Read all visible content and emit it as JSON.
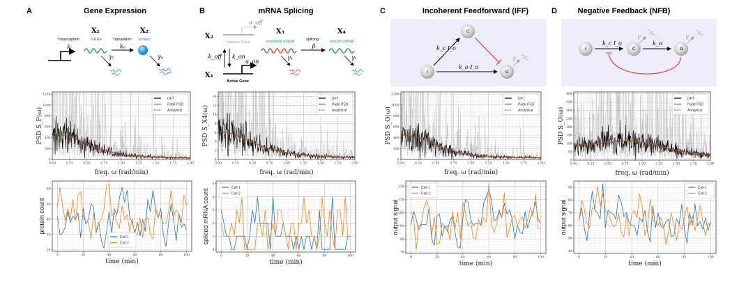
{
  "panels": [
    {
      "label": "A",
      "title": "Gene Expression"
    },
    {
      "label": "B",
      "title": "mRNA Splicing"
    },
    {
      "label": "C",
      "title": "Incoherent Feedforward (IFF)"
    },
    {
      "label": "D",
      "title": "Negative Feedback (NFB)"
    }
  ],
  "diagram_a": {
    "x1": "X₁",
    "x2": "X₂",
    "transcription": "Transcription",
    "kr": "kᵣ",
    "mrna": "mRNA",
    "translation": "Translation",
    "kp": "kₚ",
    "protein": "protein",
    "gr": "γᵣ",
    "gp": "γₚ"
  },
  "diagram_b": {
    "x2": "X₂",
    "x1": "X₁",
    "x3": "X₃",
    "x4": "X₄",
    "inactive": "Inactive Gene",
    "active": "Active Gene",
    "aoff": "α_off",
    "aon": "α_on",
    "koff": "k_off",
    "kon": "k_on",
    "unspliced": "unspliced mRNA",
    "splicing": "splicing",
    "beta": "β",
    "spliced": "spliced mRNA",
    "gu": "γᵤ",
    "gr": "γᵣ"
  },
  "diagram_c": {
    "c": "C",
    "i": "I",
    "o": "O",
    "kc": "k_c I_o",
    "ko": "k_o I_o",
    "g": "γ"
  },
  "diagram_d": {
    "c": "C",
    "i": "I",
    "o": "O",
    "kc": "k_c I_o",
    "ko": "k_o",
    "g": "γ"
  },
  "colors": {
    "cell1": "#1f77b4",
    "cell2": "#ff7f0e",
    "dft": "#000000",
    "dft_raw": "#bdbdbd",
    "pade": "#ff2020",
    "analytical": "#2ca02c",
    "diagram_bg": "#ececfa",
    "inhibit": "#ff2a1a",
    "mrna": "#1aa34a",
    "protein": "#2a6cff"
  },
  "chart_data": [
    {
      "type": "line",
      "panel": "A",
      "ylabel": "PSD S_P(ω)",
      "xlabel": "freq. ω (rad/min)",
      "xlim": [
        0,
        2
      ],
      "ylim": [
        0,
        1240
      ],
      "xticks": [
        "0.00",
        "0.25",
        "0.50",
        "0.75",
        "1.00",
        "1.25",
        "1.50",
        "1.75",
        "2.00"
      ],
      "yticks": [
        "0",
        "200",
        "400",
        "600",
        "800",
        "1000",
        "1200"
      ],
      "legend": [
        "DFT",
        "Padé PSD",
        "Analytical"
      ],
      "legend_position": "top-right",
      "grid": true,
      "x": [
        0,
        0.125,
        0.25,
        0.375,
        0.5,
        0.625,
        0.75,
        0.875,
        1,
        1.125,
        1.25,
        1.375,
        1.5,
        1.625,
        1.75,
        1.875,
        2
      ],
      "analytical": [
        480,
        460,
        420,
        360,
        290,
        225,
        170,
        130,
        95,
        75,
        60,
        50,
        42,
        38,
        33,
        30,
        28
      ]
    },
    {
      "type": "line",
      "panel": "B",
      "ylabel": "PSD S_X4(ω)",
      "xlabel": "freq. ω (rad/min)",
      "xlim": [
        0,
        2
      ],
      "ylim": [
        0,
        15
      ],
      "xticks": [
        "0.00",
        "0.25",
        "0.50",
        "0.75",
        "1.00",
        "1.25",
        "1.50",
        "1.75",
        "2.00"
      ],
      "yticks": [
        "0",
        "2",
        "4",
        "6",
        "8",
        "10",
        "12",
        "14"
      ],
      "legend": [
        "DFT",
        "Padé PSD",
        "Analytical"
      ],
      "legend_position": "top-right",
      "grid": true,
      "x": [
        0,
        0.125,
        0.25,
        0.375,
        0.5,
        0.625,
        0.75,
        0.875,
        1,
        1.125,
        1.25,
        1.375,
        1.5,
        1.625,
        1.75,
        1.875,
        2
      ],
      "analytical": [
        6.2,
        6.0,
        5.5,
        4.7,
        3.8,
        3.0,
        2.4,
        1.9,
        1.5,
        1.2,
        1.0,
        0.85,
        0.7,
        0.6,
        0.55,
        0.5,
        0.45
      ]
    },
    {
      "type": "line",
      "panel": "C",
      "ylabel": "PSD S_O(ω)",
      "xlabel": "freq. ω (rad/min)",
      "xlim": [
        0,
        2
      ],
      "ylim": [
        0,
        1240
      ],
      "xticks": [
        "0.00",
        "0.25",
        "0.50",
        "0.75",
        "1.00",
        "1.25",
        "1.50",
        "1.75",
        "2.00"
      ],
      "yticks": [
        "0",
        "200",
        "400",
        "600",
        "800",
        "1000",
        "1200"
      ],
      "legend": [
        "DFT",
        "Padé PSD",
        "Analytical"
      ],
      "legend_position": "top-right",
      "grid": true,
      "x": [
        0,
        0.125,
        0.25,
        0.375,
        0.5,
        0.625,
        0.75,
        0.875,
        1,
        1.125,
        1.25,
        1.375,
        1.5,
        1.625,
        1.75,
        1.875,
        2
      ],
      "analytical": [
        450,
        440,
        400,
        340,
        270,
        205,
        155,
        115,
        85,
        65,
        55,
        48,
        42,
        38,
        35,
        32,
        30
      ]
    },
    {
      "type": "line",
      "panel": "D",
      "ylabel": "PSD S_O(ω)",
      "xlabel": "freq. ω (rad/min)",
      "xlim": [
        0,
        2
      ],
      "ylim": [
        0,
        410
      ],
      "xticks": [
        "0.00",
        "0.25",
        "0.50",
        "0.75",
        "1.00",
        "1.25",
        "1.50",
        "1.75",
        "2.00"
      ],
      "yticks": [
        "0",
        "50",
        "100",
        "150",
        "200",
        "250",
        "300",
        "350",
        "400"
      ],
      "legend": [
        "DFT",
        "Padé PSD",
        "Analytical"
      ],
      "legend_position": "top-right",
      "grid": true,
      "x": [
        0,
        0.125,
        0.25,
        0.375,
        0.5,
        0.625,
        0.75,
        0.875,
        1,
        1.125,
        1.25,
        1.375,
        1.5,
        1.625,
        1.75,
        1.875,
        2
      ],
      "analytical": [
        90,
        92,
        96,
        102,
        108,
        112,
        114,
        113,
        108,
        98,
        85,
        72,
        60,
        50,
        42,
        35,
        30
      ]
    },
    {
      "type": "line",
      "panel": "A",
      "ylabel": "protein count",
      "xlabel": "time (min)",
      "xlim": [
        -4,
        104
      ],
      "ylim": [
        19,
        65
      ],
      "xticks": [
        "0",
        "20",
        "40",
        "60",
        "80",
        "100"
      ],
      "yticks": [
        "20",
        "30",
        "40",
        "50",
        "60"
      ],
      "legend": [
        "Cell 1",
        "Cell 2"
      ],
      "legend_position": "lower-center",
      "grid": true,
      "t_step": 2,
      "series": [
        {
          "name": "Cell 1",
          "values": [
            42,
            30,
            31,
            35,
            45,
            38,
            42,
            40,
            44,
            28,
            47,
            37,
            40,
            50,
            48,
            31,
            38,
            26,
            21,
            32,
            45,
            31,
            47,
            43,
            54,
            61,
            51,
            59,
            41,
            38,
            31,
            38,
            29,
            40,
            32,
            53,
            45,
            59,
            46,
            41,
            47,
            30,
            22,
            37,
            50,
            39,
            26,
            44,
            35,
            37,
            33
          ]
        },
        {
          "name": "Cell 2",
          "values": [
            48,
            61,
            49,
            39,
            47,
            40,
            53,
            39,
            56,
            58,
            42,
            38,
            38,
            27,
            44,
            33,
            38,
            40,
            46,
            62,
            63,
            42,
            45,
            38,
            34,
            49,
            40,
            43,
            32,
            40,
            29,
            30,
            41,
            28,
            40,
            41,
            30,
            27,
            47,
            44,
            42,
            37,
            37,
            45,
            59,
            42,
            46,
            44,
            38,
            56,
            49
          ]
        }
      ]
    },
    {
      "type": "line",
      "panel": "B",
      "ylabel": "spliced mRNA count",
      "xlabel": "time (min)",
      "xlim": [
        -4,
        104
      ],
      "ylim": [
        -0.2,
        5.2
      ],
      "xticks": [
        "0",
        "20",
        "40",
        "60",
        "80",
        "100"
      ],
      "yticks": [
        "0",
        "1",
        "2",
        "3",
        "4",
        "5"
      ],
      "legend": [
        "Cell 1",
        "Cell 2"
      ],
      "legend_position": "top-left",
      "grid": true,
      "t_step": 2,
      "series": [
        {
          "name": "Cell 1",
          "values": [
            3,
            2,
            1,
            1,
            0,
            0,
            1,
            1,
            1,
            1,
            0,
            1,
            3,
            2,
            4,
            2,
            2,
            2,
            2,
            0,
            4,
            1,
            1,
            1,
            2,
            1,
            1,
            1,
            0,
            1,
            0,
            1,
            0,
            1,
            1,
            0,
            1,
            0,
            3,
            0,
            0,
            0,
            0,
            4,
            0,
            0,
            0,
            0,
            0,
            1,
            1
          ]
        },
        {
          "name": "Cell 2",
          "values": [
            2,
            1,
            1,
            1,
            2,
            1,
            3,
            2,
            4,
            0,
            0,
            0,
            0,
            0,
            2,
            2,
            1,
            3,
            0,
            1,
            2,
            1,
            3,
            3,
            2,
            1,
            0,
            2,
            2,
            0,
            2,
            2,
            4,
            2,
            3,
            1,
            1,
            0,
            1,
            4,
            2,
            1,
            3,
            1,
            0,
            3,
            3,
            1,
            4,
            1,
            1
          ]
        }
      ]
    },
    {
      "type": "line",
      "panel": "C",
      "ylabel": "output signal",
      "xlabel": "time (min)",
      "xlim": [
        -4,
        104
      ],
      "ylim": [
        69,
        124
      ],
      "xticks": [
        "0",
        "20",
        "40",
        "60",
        "80",
        "100"
      ],
      "yticks": [
        "70",
        "80",
        "90",
        "100",
        "110",
        "120"
      ],
      "legend": [
        "Cell 1",
        "Cell 2"
      ],
      "legend_position": "top-left",
      "grid": true,
      "t_step": 2,
      "series": [
        {
          "name": "Cell 1",
          "values": [
            91,
            101,
            95,
            87,
            91,
            91,
            91,
            104,
            80,
            75,
            97,
            99,
            82,
            90,
            86,
            94,
            97,
            85,
            74,
            73,
            96,
            110,
            108,
            95,
            90,
            92,
            92,
            91,
            107,
            112,
            117,
            110,
            94,
            95,
            102,
            96,
            107,
            99,
            102,
            95,
            80,
            90,
            85,
            84,
            101,
            88,
            96,
            101,
            108,
            95,
            92
          ]
        },
        {
          "name": "Cell 2",
          "values": [
            101,
            96,
            72,
            90,
            91,
            104,
            109,
            104,
            83,
            97,
            76,
            77,
            92,
            88,
            90,
            79,
            101,
            88,
            100,
            80,
            108,
            100,
            90,
            93,
            81,
            80,
            95,
            90,
            96,
            93,
            122,
            92,
            85,
            92,
            100,
            96,
            115,
            81,
            88,
            96,
            98,
            90,
            95,
            97,
            88,
            95,
            104,
            97,
            114,
            88,
            88
          ]
        }
      ]
    },
    {
      "type": "line",
      "panel": "D",
      "ylabel": "output signal",
      "xlabel": "time (min)",
      "xlim": [
        -4,
        104
      ],
      "ylim": [
        38,
        95
      ],
      "xticks": [
        "0",
        "20",
        "40",
        "60",
        "80",
        "100"
      ],
      "yticks": [
        "40",
        "50",
        "60",
        "70",
        "80",
        "90"
      ],
      "legend": [
        "Cell 1",
        "Cell 2"
      ],
      "legend_position": "top-right",
      "grid": true,
      "t_step": 2,
      "series": [
        {
          "name": "Cell 1",
          "values": [
            64,
            74,
            58,
            48,
            70,
            87,
            72,
            70,
            65,
            93,
            58,
            72,
            70,
            69,
            65,
            84,
            78,
            67,
            70,
            62,
            60,
            60,
            52,
            66,
            63,
            72,
            55,
            47,
            76,
            58,
            70,
            60,
            58,
            63,
            65,
            51,
            52,
            65,
            61,
            77,
            57,
            46,
            70,
            60,
            77,
            60,
            63,
            57,
            66,
            56,
            63
          ]
        },
        {
          "name": "Cell 2",
          "values": [
            64,
            80,
            73,
            62,
            58,
            74,
            73,
            91,
            75,
            85,
            71,
            70,
            64,
            59,
            60,
            70,
            55,
            51,
            68,
            52,
            69,
            72,
            66,
            85,
            74,
            52,
            59,
            81,
            64,
            62,
            60,
            66,
            60,
            45,
            55,
            70,
            60,
            48,
            61,
            57,
            66,
            75,
            60,
            68,
            56,
            65,
            76,
            63,
            52,
            62,
            60
          ]
        }
      ]
    }
  ]
}
